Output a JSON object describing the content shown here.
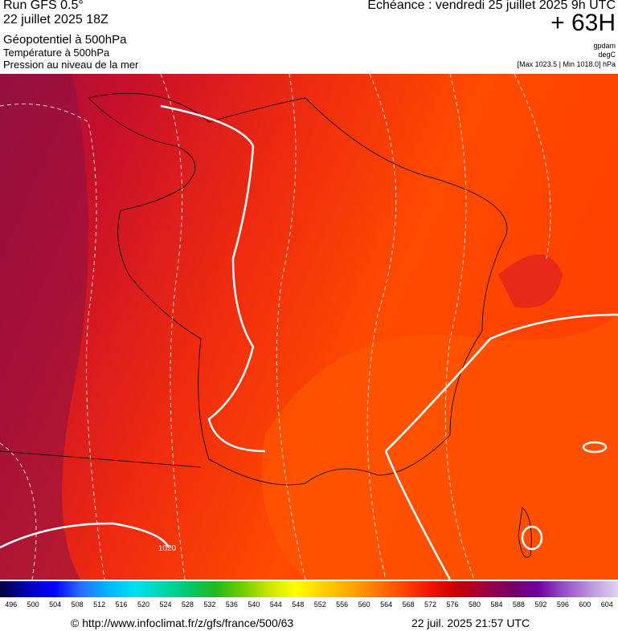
{
  "header": {
    "run": "Run GFS 0.5°",
    "date": "22 juillet 2025 18Z",
    "fields": [
      "Géopotentiel à 500hPa",
      "Température à 500hPa",
      "Pression au niveau de la mer"
    ],
    "echeance": "Echéance : vendredi 25 juillet 2025 9h UTC",
    "offset": "+ 63H",
    "units": [
      "gpdam",
      "degC",
      "[Max 1023.5 | Min 1018.0] hPa"
    ]
  },
  "map": {
    "isobar_label": "1020"
  },
  "colorbar": {
    "labels": [
      496,
      500,
      504,
      508,
      512,
      516,
      520,
      524,
      528,
      532,
      536,
      540,
      544,
      548,
      552,
      556,
      560,
      564,
      568,
      572,
      576,
      580,
      584,
      588,
      592,
      596,
      600,
      604
    ]
  },
  "footer": {
    "credit": "© http://www.infoclimat.fr/z/gfs/france/500/63",
    "timestamp": "22 juil. 2025 21:57 UTC"
  }
}
